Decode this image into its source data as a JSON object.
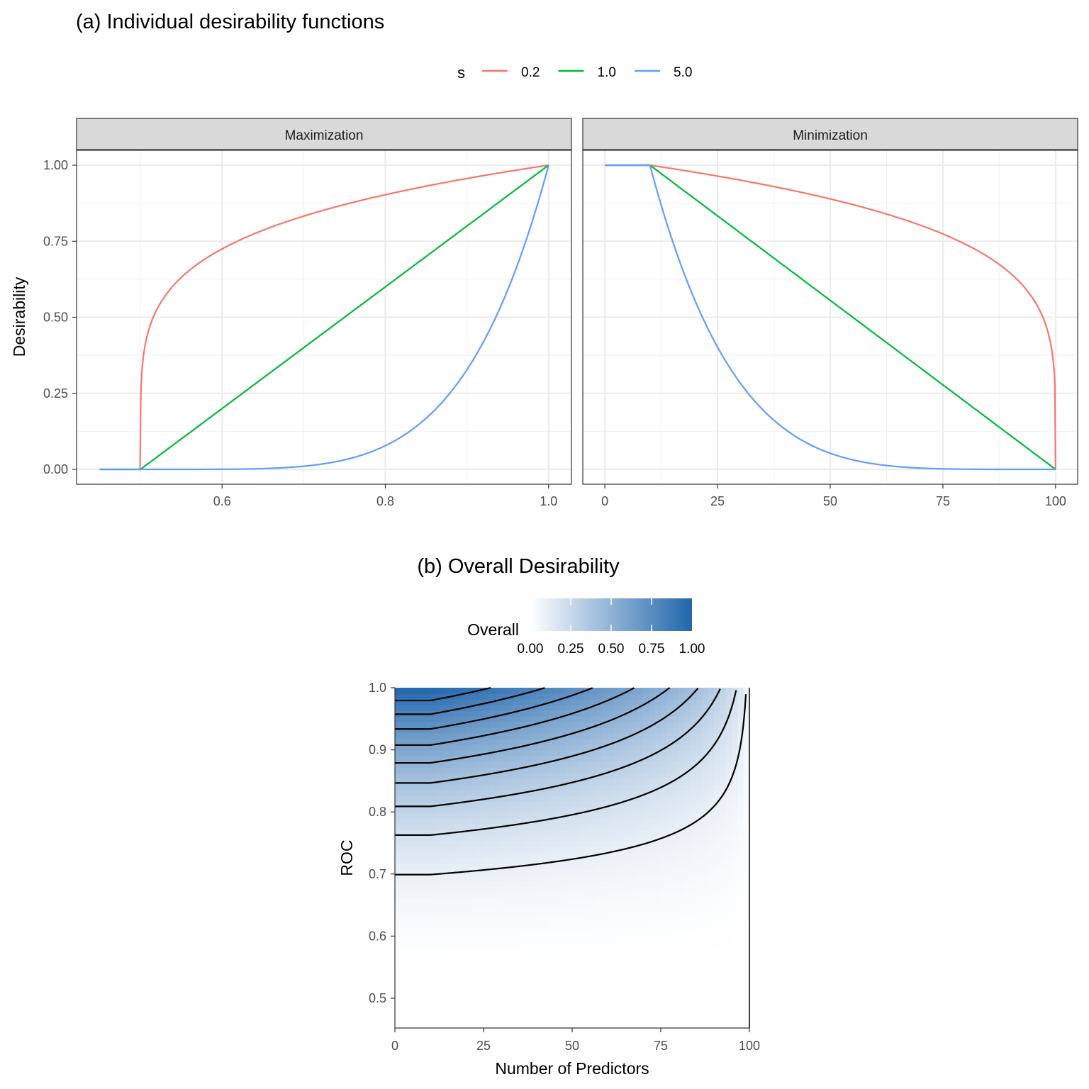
{
  "chart_data": [
    {
      "type": "line",
      "title": "(a) Individual desirability functions",
      "ylabel": "Desirability",
      "legend": {
        "title": "s",
        "position": "top",
        "entries": [
          {
            "label": "0.2",
            "s": 0.2,
            "color": "#F8766D"
          },
          {
            "label": "1.0",
            "s": 1.0,
            "color": "#00BA38"
          },
          {
            "label": "5.0",
            "s": 5.0,
            "color": "#619CFF"
          }
        ]
      },
      "ylim": [
        0,
        1
      ],
      "yticks": [
        "0.00",
        "0.25",
        "0.50",
        "0.75",
        "1.00"
      ],
      "yvalues": [
        0,
        0.25,
        0.5,
        0.75,
        1
      ],
      "facets": [
        {
          "label": "Maximization",
          "kind": "max",
          "low": 0.5,
          "high": 1.0,
          "xrange": [
            0.45,
            1.0
          ],
          "xlim": [
            0.4217,
            1.028
          ],
          "xticks": [
            "0.6",
            "0.8",
            "1.0"
          ],
          "xtickvalues": [
            0.6,
            0.8,
            1.0
          ],
          "xminor": [
            0.5,
            0.7,
            0.9
          ]
        },
        {
          "label": "Minimization",
          "kind": "min",
          "low": 10,
          "high": 100,
          "xrange": [
            0,
            100
          ],
          "xlim": [
            -4.9,
            104.9
          ],
          "xticks": [
            "0",
            "25",
            "50",
            "75",
            "100"
          ],
          "xtickvalues": [
            0,
            25,
            50,
            75,
            100
          ],
          "xminor": [
            12.5,
            37.5,
            62.5,
            87.5
          ]
        }
      ]
    },
    {
      "type": "heatmap",
      "title": "(b) Overall Desirability",
      "xlabel": "Number of Predictors",
      "ylabel": "ROC",
      "xlim": [
        0,
        100
      ],
      "ylim": [
        0.452,
        1.0
      ],
      "xticks": [
        "0",
        "25",
        "50",
        "75",
        "100"
      ],
      "xtickvalues": [
        0,
        25,
        50,
        75,
        100
      ],
      "yticks": [
        "0.5",
        "0.6",
        "0.7",
        "0.8",
        "0.9",
        "1.0"
      ],
      "ytickvalues": [
        0.5,
        0.6,
        0.7,
        0.8,
        0.9,
        1.0
      ],
      "fill": "Overall = geometric mean of ROC desirability (max, low 0.5, high 1.0, s 5) and predictors desirability (min, low 10, high 100, s 1)",
      "roc_desirability": {
        "low": 0.5,
        "high": 1.0,
        "s": 5
      },
      "predictor_desirability": {
        "low": 10,
        "high": 100,
        "s": 1
      },
      "contour_levels": [
        0.1,
        0.2,
        0.3,
        0.4,
        0.5,
        0.6,
        0.7,
        0.8,
        0.9
      ],
      "colorbar": {
        "title": "Overall",
        "ticks": [
          "0.00",
          "0.25",
          "0.50",
          "0.75",
          "1.00"
        ],
        "tickvalues": [
          0,
          0.25,
          0.5,
          0.75,
          1
        ],
        "low_color": "#FFFFFF",
        "high_color": "#2166AC"
      }
    }
  ]
}
